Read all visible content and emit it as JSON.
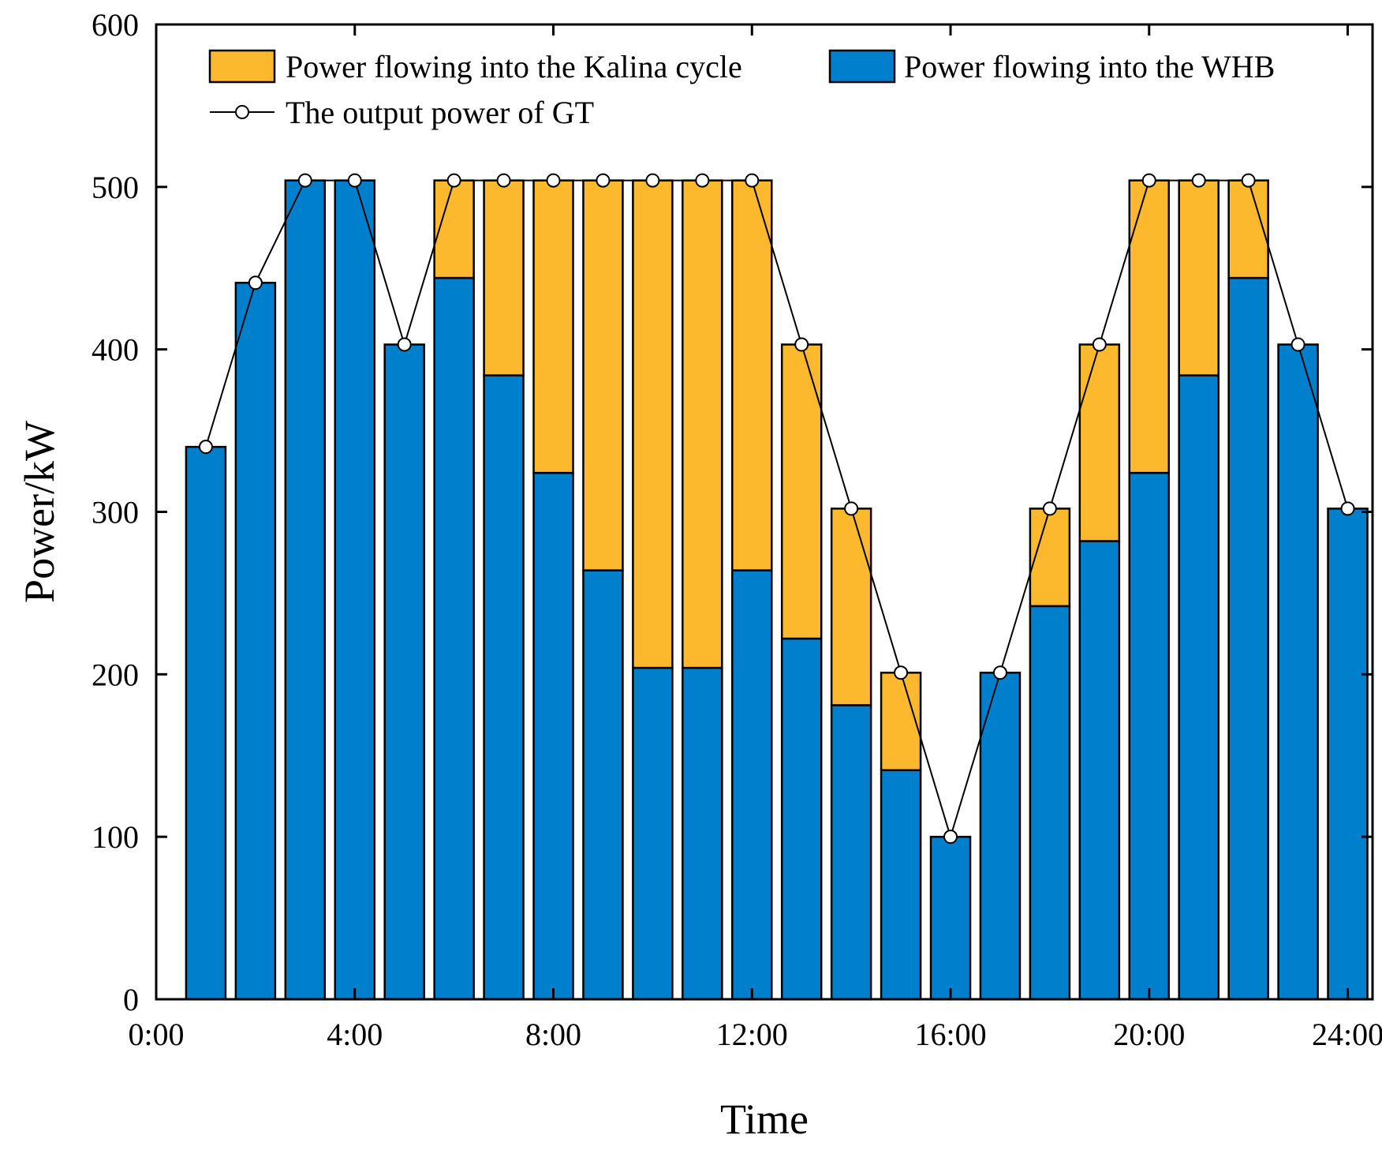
{
  "chart_data": {
    "type": "bar",
    "stacked": true,
    "title": "",
    "xlabel": "Time",
    "ylabel": "Power/kW",
    "ylim": [
      0,
      600
    ],
    "yticks": [
      0,
      100,
      200,
      300,
      400,
      500,
      600
    ],
    "xlim": [
      0,
      24.5
    ],
    "xticks": [
      0,
      4,
      8,
      12,
      16,
      20,
      24
    ],
    "xtick_labels": [
      "0:00",
      "4:00",
      "8:00",
      "12:00",
      "16:00",
      "20:00",
      "24:00"
    ],
    "x": [
      1,
      2,
      3,
      4,
      5,
      6,
      7,
      8,
      9,
      10,
      11,
      12,
      13,
      14,
      15,
      16,
      17,
      18,
      19,
      20,
      21,
      22,
      23,
      24
    ],
    "series": [
      {
        "name": "Power flowing into the WHB",
        "color": "#0080CC",
        "values": [
          340,
          441,
          504,
          504,
          403,
          444,
          384,
          324,
          264,
          204,
          204,
          264,
          222,
          181,
          141,
          100,
          201,
          242,
          282,
          324,
          384,
          444,
          403,
          302
        ]
      },
      {
        "name": "Power flowing into the Kalina cycle",
        "color": "#FDB92E",
        "values": [
          0,
          0,
          0,
          0,
          0,
          60,
          120,
          180,
          240,
          300,
          300,
          240,
          181,
          121,
          60,
          0,
          0,
          60,
          121,
          180,
          120,
          60,
          0,
          0
        ]
      }
    ],
    "line": {
      "name": "The output power of GT",
      "values": [
        340,
        441,
        504,
        504,
        403,
        504,
        504,
        504,
        504,
        504,
        504,
        504,
        403,
        302,
        201,
        100,
        201,
        302,
        403,
        504,
        504,
        504,
        403,
        302
      ]
    },
    "legend": {
      "position": "top",
      "items": [
        "Power flowing into the Kalina cycle",
        "Power flowing into the WHB",
        "The output power of GT"
      ]
    }
  }
}
